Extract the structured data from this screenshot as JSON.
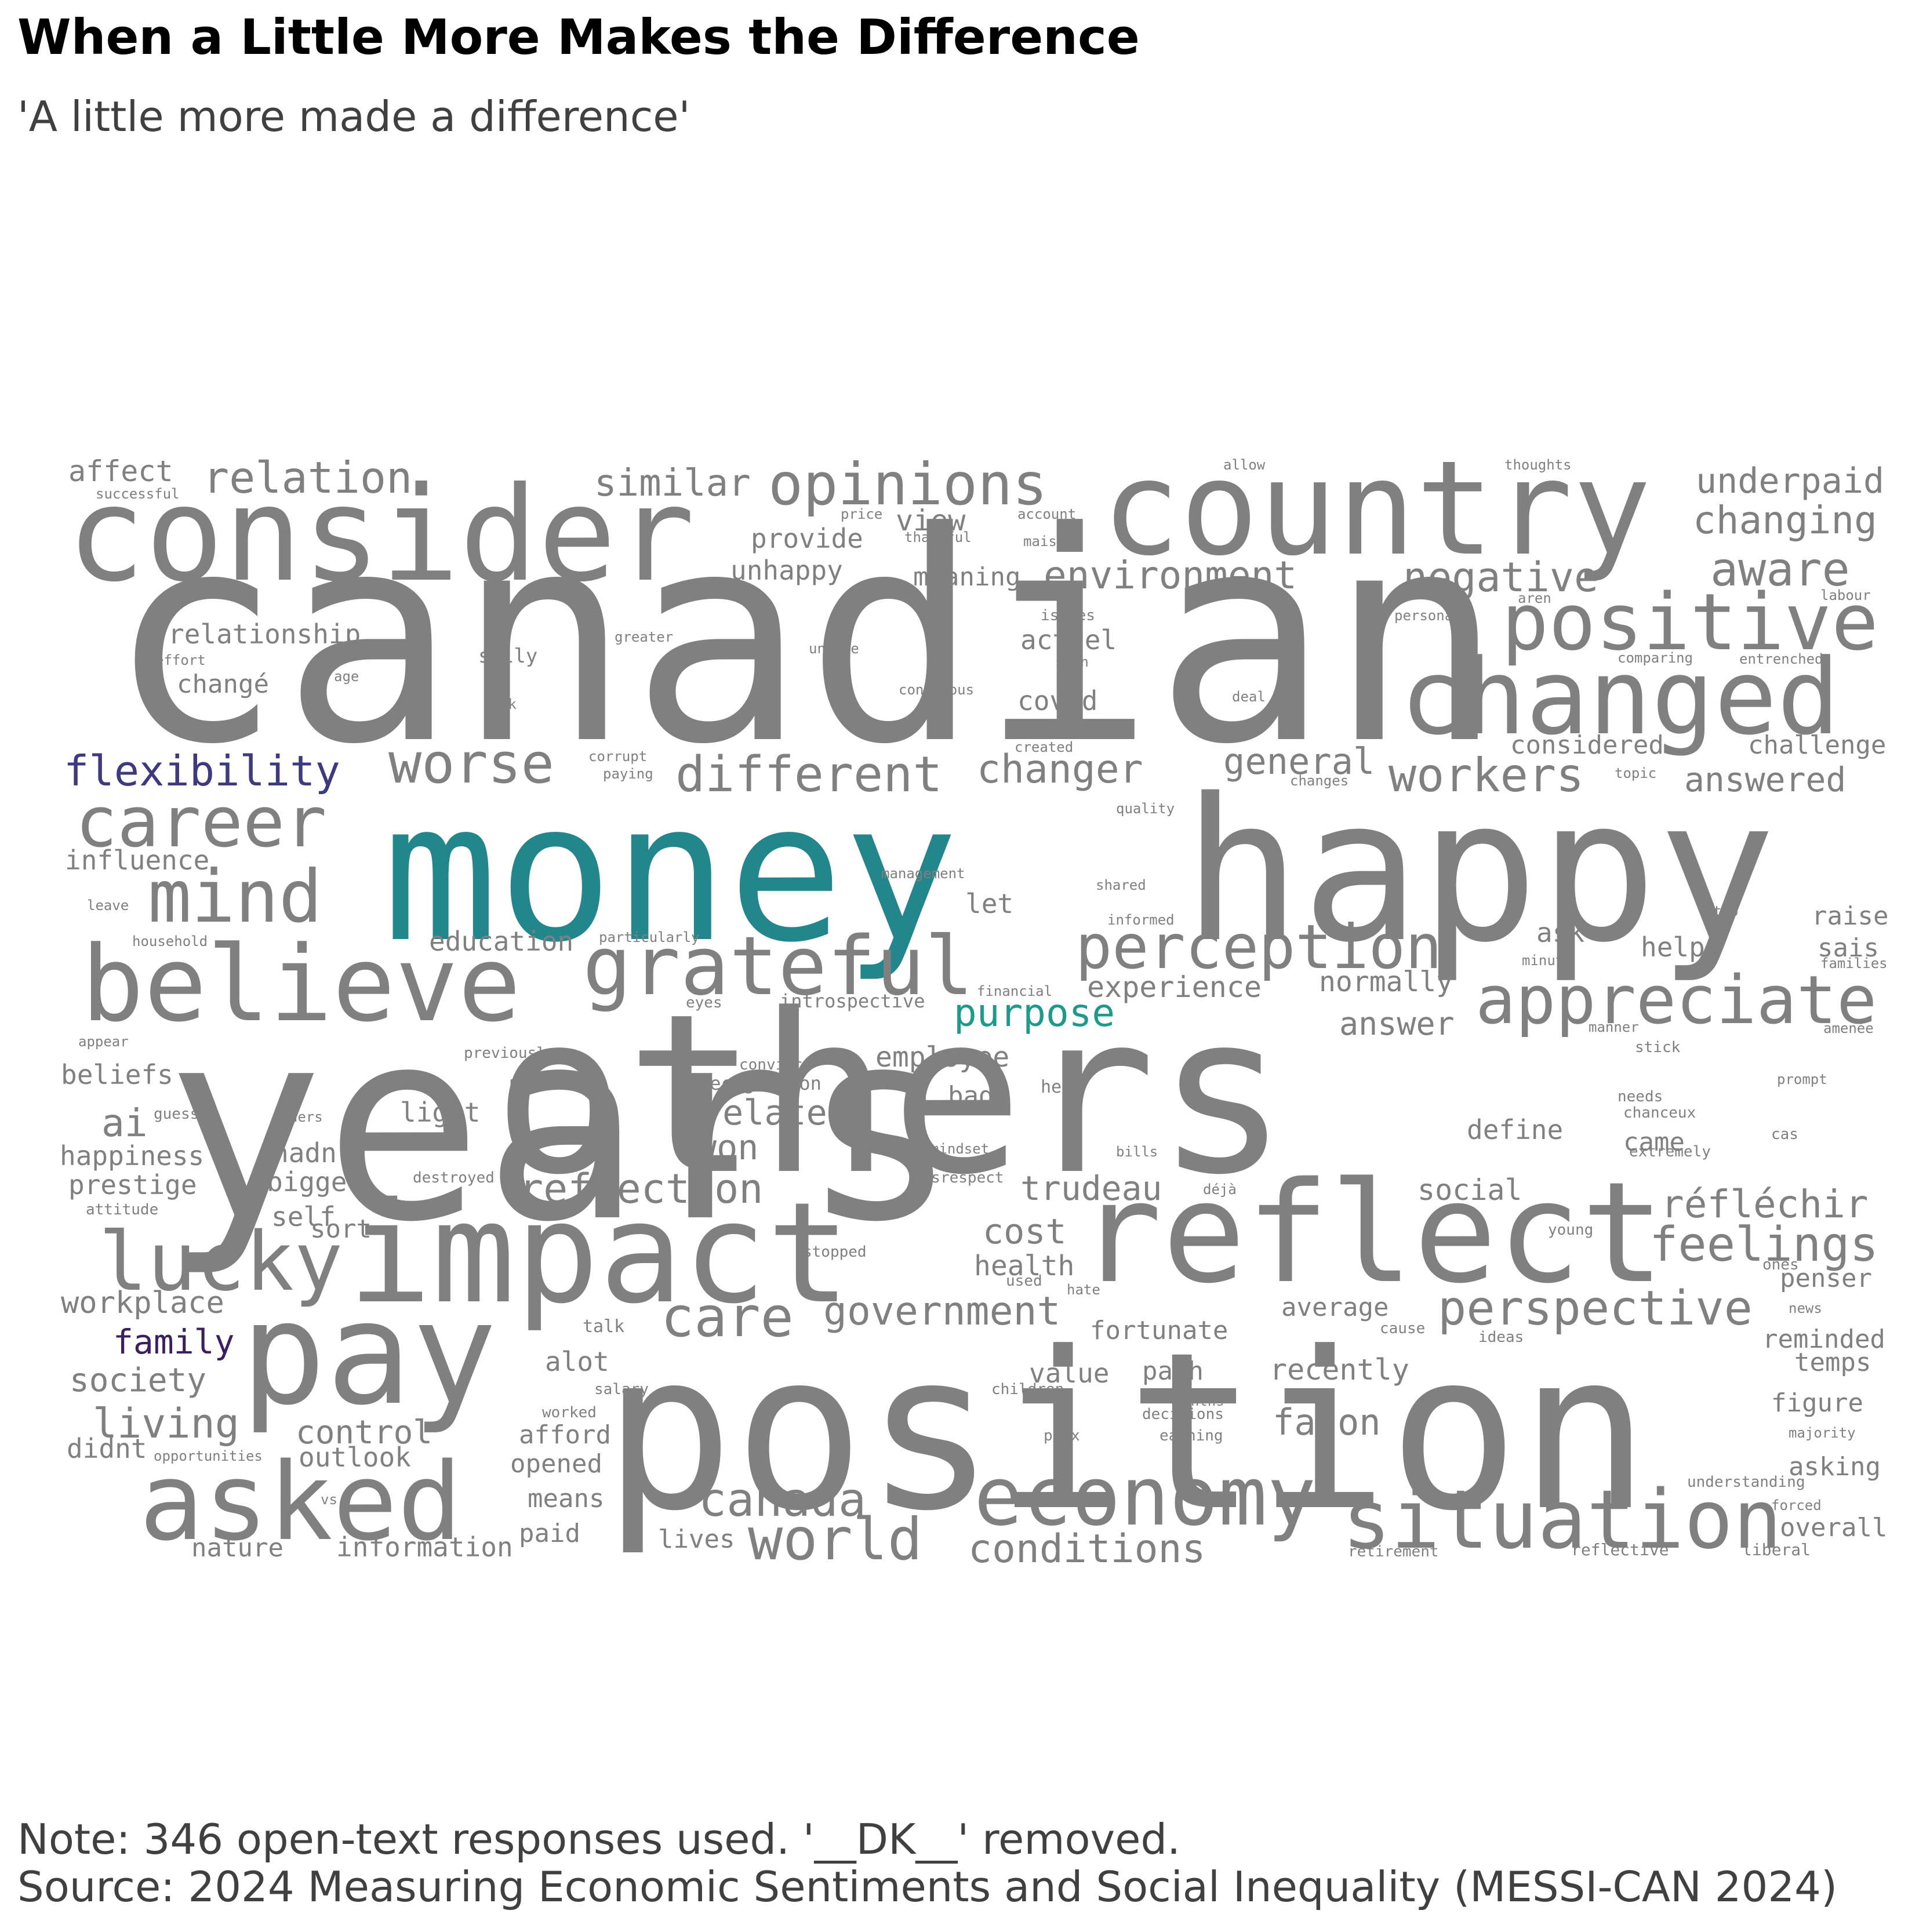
{
  "title": "When a Little More Makes the Difference",
  "subtitle": "'A little more made a difference'",
  "note": "Note: 346 open-text responses used. '__DK__' removed.",
  "source": "Source: 2024 Measuring Economic Sentiments and Social Inequality (MESSI-CAN 2024)",
  "colors": {
    "default": "#808080",
    "teal": "#23868c",
    "indigo": "#3e3a7e",
    "purple": "#3d1f60",
    "green": "#1f9a8a"
  },
  "words": [
    {
      "text": "canadian",
      "tier": 1
    },
    {
      "text": "years",
      "tier": 1
    },
    {
      "text": "others",
      "tier": 1
    },
    {
      "text": "position",
      "tier": 1
    },
    {
      "text": "money",
      "tier": 1,
      "color": "teal"
    },
    {
      "text": "happy",
      "tier": 1
    },
    {
      "text": "impact",
      "tier": 2
    },
    {
      "text": "reflect",
      "tier": 2
    },
    {
      "text": "pay",
      "tier": 2
    },
    {
      "text": "consider",
      "tier": 2
    },
    {
      "text": "country",
      "tier": 2
    },
    {
      "text": "changed",
      "tier": 3
    },
    {
      "text": "asked",
      "tier": 3
    },
    {
      "text": "believe",
      "tier": 3
    },
    {
      "text": "economy",
      "tier": 3
    },
    {
      "text": "situation",
      "tier": 3
    },
    {
      "text": "lucky",
      "tier": 3
    },
    {
      "text": "positive",
      "tier": 4
    },
    {
      "text": "grateful",
      "tier": 4
    },
    {
      "text": "career",
      "tier": 4
    },
    {
      "text": "mind",
      "tier": 4
    },
    {
      "text": "appreciate",
      "tier": 4
    },
    {
      "text": "perception",
      "tier": 4
    },
    {
      "text": "opinions",
      "tier": 4
    },
    {
      "text": "world",
      "tier": 4
    },
    {
      "text": "worse",
      "tier": 5
    },
    {
      "text": "different",
      "tier": 5
    },
    {
      "text": "perspective",
      "tier": 5
    },
    {
      "text": "feelings",
      "tier": 5
    },
    {
      "text": "care",
      "tier": 5
    },
    {
      "text": "canada",
      "tier": 5
    },
    {
      "text": "aware",
      "tier": 5
    },
    {
      "text": "relation",
      "tier": 5
    },
    {
      "text": "workers",
      "tier": 5
    },
    {
      "text": "réfléchir",
      "tier": 6
    },
    {
      "text": "negative",
      "tier": 6
    },
    {
      "text": "environment",
      "tier": 6
    },
    {
      "text": "similar",
      "tier": 6
    },
    {
      "text": "changing",
      "tier": 6
    },
    {
      "text": "underpaid",
      "tier": 6
    },
    {
      "text": "changer",
      "tier": 6
    },
    {
      "text": "general",
      "tier": 6
    },
    {
      "text": "government",
      "tier": 6
    },
    {
      "text": "reflection",
      "tier": 6
    },
    {
      "text": "conditions",
      "tier": 6
    },
    {
      "text": "trudeau",
      "tier": 6
    },
    {
      "text": "cost",
      "tier": 6
    },
    {
      "text": "living",
      "tier": 6
    },
    {
      "text": "flexibility",
      "tier": 6,
      "color": "indigo"
    },
    {
      "text": "purpose",
      "tier": 6,
      "color": "green"
    },
    {
      "text": "related",
      "tier": 6
    },
    {
      "text": "façon",
      "tier": 6
    },
    {
      "text": "answered",
      "tier": 6
    },
    {
      "text": "ai",
      "tier": 6
    },
    {
      "text": "won",
      "tier": 6
    },
    {
      "text": "answer",
      "tier": 7
    },
    {
      "text": "view",
      "tier": 7
    },
    {
      "text": "affect",
      "tier": 7
    },
    {
      "text": "society",
      "tier": 7
    },
    {
      "text": "control",
      "tier": 7
    },
    {
      "text": "family",
      "tier": 7,
      "color": "purple"
    },
    {
      "text": "workplace",
      "tier": 7
    },
    {
      "text": "health",
      "tier": 7
    },
    {
      "text": "experience",
      "tier": 7
    },
    {
      "text": "normally",
      "tier": 7
    },
    {
      "text": "recently",
      "tier": 7
    },
    {
      "text": "social",
      "tier": 7
    },
    {
      "text": "employee",
      "tier": 7
    },
    {
      "text": "education",
      "tier": 7
    },
    {
      "text": "actuel",
      "tier": 7
    },
    {
      "text": "covid",
      "tier": 7
    },
    {
      "text": "considered",
      "tier": 7
    },
    {
      "text": "challenge",
      "tier": 7
    },
    {
      "text": "relationship",
      "tier": 7
    },
    {
      "text": "unhappy",
      "tier": 7
    },
    {
      "text": "provide",
      "tier": 7
    },
    {
      "text": "meaning",
      "tier": 7
    },
    {
      "text": "changé",
      "tier": 7
    },
    {
      "text": "influence",
      "tier": 7
    },
    {
      "text": "beliefs",
      "tier": 7
    },
    {
      "text": "happiness",
      "tier": 7
    },
    {
      "text": "prestige",
      "tier": 7
    },
    {
      "text": "hadn",
      "tier": 7
    },
    {
      "text": "bigger",
      "tier": 7
    },
    {
      "text": "self",
      "tier": 7
    },
    {
      "text": "sort",
      "tier": 7
    },
    {
      "text": "outlook",
      "tier": 7
    },
    {
      "text": "didnt",
      "tier": 7
    },
    {
      "text": "nature",
      "tier": 7
    },
    {
      "text": "information",
      "tier": 7
    },
    {
      "text": "paid",
      "tier": 7
    },
    {
      "text": "lives",
      "tier": 7
    },
    {
      "text": "means",
      "tier": 7
    },
    {
      "text": "opened",
      "tier": 7
    },
    {
      "text": "afford",
      "tier": 7
    },
    {
      "text": "alot",
      "tier": 7
    },
    {
      "text": "value",
      "tier": 7
    },
    {
      "text": "path",
      "tier": 7
    },
    {
      "text": "fortunate",
      "tier": 7
    },
    {
      "text": "average",
      "tier": 7
    },
    {
      "text": "let",
      "tier": 7
    },
    {
      "text": "bad",
      "tier": 7
    },
    {
      "text": "light",
      "tier": 7
    },
    {
      "text": "define",
      "tier": 7
    },
    {
      "text": "came",
      "tier": 7
    },
    {
      "text": "ask",
      "tier": 7
    },
    {
      "text": "help",
      "tier": 7
    },
    {
      "text": "raise",
      "tier": 7
    },
    {
      "text": "sais",
      "tier": 7
    },
    {
      "text": "penser",
      "tier": 7
    },
    {
      "text": "reminded",
      "tier": 7
    },
    {
      "text": "temps",
      "tier": 7
    },
    {
      "text": "figure",
      "tier": 7
    },
    {
      "text": "asking",
      "tier": 7
    },
    {
      "text": "overall",
      "tier": 7
    },
    {
      "text": "allow",
      "tier": 8
    },
    {
      "text": "thoughts",
      "tier": 8
    },
    {
      "text": "successful",
      "tier": 8
    },
    {
      "text": "price",
      "tier": 8
    },
    {
      "text": "account",
      "tier": 8
    },
    {
      "text": "thankful",
      "tier": 8
    },
    {
      "text": "maison",
      "tier": 8
    },
    {
      "text": "issues",
      "tier": 8
    },
    {
      "text": "personal",
      "tier": 8
    },
    {
      "text": "aren",
      "tier": 8
    },
    {
      "text": "labour",
      "tier": 8
    },
    {
      "text": "greater",
      "tier": 8
    },
    {
      "text": "unable",
      "tier": 8
    },
    {
      "text": "soon",
      "tier": 8
    },
    {
      "text": "comparing",
      "tier": 8
    },
    {
      "text": "entrenched",
      "tier": 8
    },
    {
      "text": "effort",
      "tier": 8
    },
    {
      "text": "age",
      "tier": 8
    },
    {
      "text": "silly",
      "tier": 8
    },
    {
      "text": "conscious",
      "tier": 8
    },
    {
      "text": "deal",
      "tier": 8
    },
    {
      "text": "risk",
      "tier": 8
    },
    {
      "text": "created",
      "tier": 8
    },
    {
      "text": "corrupt",
      "tier": 8
    },
    {
      "text": "paying",
      "tier": 8
    },
    {
      "text": "changes",
      "tier": 8
    },
    {
      "text": "topic",
      "tier": 8
    },
    {
      "text": "quality",
      "tier": 8
    },
    {
      "text": "management",
      "tier": 8
    },
    {
      "text": "shared",
      "tier": 8
    },
    {
      "text": "leave",
      "tier": 8
    },
    {
      "text": "top",
      "tier": 8
    },
    {
      "text": "household",
      "tier": 8
    },
    {
      "text": "particularly",
      "tier": 8
    },
    {
      "text": "informed",
      "tier": 8
    },
    {
      "text": "minute",
      "tier": 8
    },
    {
      "text": "families",
      "tier": 8
    },
    {
      "text": "financial",
      "tier": 8
    },
    {
      "text": "eyes",
      "tier": 8
    },
    {
      "text": "introspective",
      "tier": 8
    },
    {
      "text": "appear",
      "tier": 8
    },
    {
      "text": "manner",
      "tier": 8
    },
    {
      "text": "amenée",
      "tier": 8
    },
    {
      "text": "previously",
      "tier": 8
    },
    {
      "text": "convince",
      "tier": 8
    },
    {
      "text": "recognition",
      "tier": 8
    },
    {
      "text": "hear",
      "tier": 8
    },
    {
      "text": "stick",
      "tier": 8
    },
    {
      "text": "needs",
      "tier": 8
    },
    {
      "text": "prompt",
      "tier": 8
    },
    {
      "text": "chanceux",
      "tier": 8
    },
    {
      "text": "guess",
      "tier": 8
    },
    {
      "text": "owners",
      "tier": 8
    },
    {
      "text": "cas",
      "tier": 8
    },
    {
      "text": "mindset",
      "tier": 8
    },
    {
      "text": "bills",
      "tier": 8
    },
    {
      "text": "extremely",
      "tier": 8
    },
    {
      "text": "destroyed",
      "tier": 8
    },
    {
      "text": "disrespect",
      "tier": 8
    },
    {
      "text": "déjà",
      "tier": 8
    },
    {
      "text": "attitude",
      "tier": 8
    },
    {
      "text": "young",
      "tier": 8
    },
    {
      "text": "stopped",
      "tier": 8
    },
    {
      "text": "ones",
      "tier": 8
    },
    {
      "text": "used",
      "tier": 8
    },
    {
      "text": "hate",
      "tier": 8
    },
    {
      "text": "news",
      "tier": 8
    },
    {
      "text": "talk",
      "tier": 8
    },
    {
      "text": "cause",
      "tier": 8
    },
    {
      "text": "ideas",
      "tier": 8
    },
    {
      "text": "salary",
      "tier": 8
    },
    {
      "text": "children",
      "tier": 8
    },
    {
      "text": "months",
      "tier": 8
    },
    {
      "text": "decisions",
      "tier": 8
    },
    {
      "text": "worked",
      "tier": 8
    },
    {
      "text": "peux",
      "tier": 8
    },
    {
      "text": "earning",
      "tier": 8
    },
    {
      "text": "majority",
      "tier": 8
    },
    {
      "text": "opportunities",
      "tier": 8
    },
    {
      "text": "understanding",
      "tier": 8
    },
    {
      "text": "vs",
      "tier": 8
    },
    {
      "text": "forced",
      "tier": 8
    },
    {
      "text": "retirement",
      "tier": 8
    },
    {
      "text": "reflective",
      "tier": 8
    },
    {
      "text": "liberal",
      "tier": 8
    }
  ]
}
